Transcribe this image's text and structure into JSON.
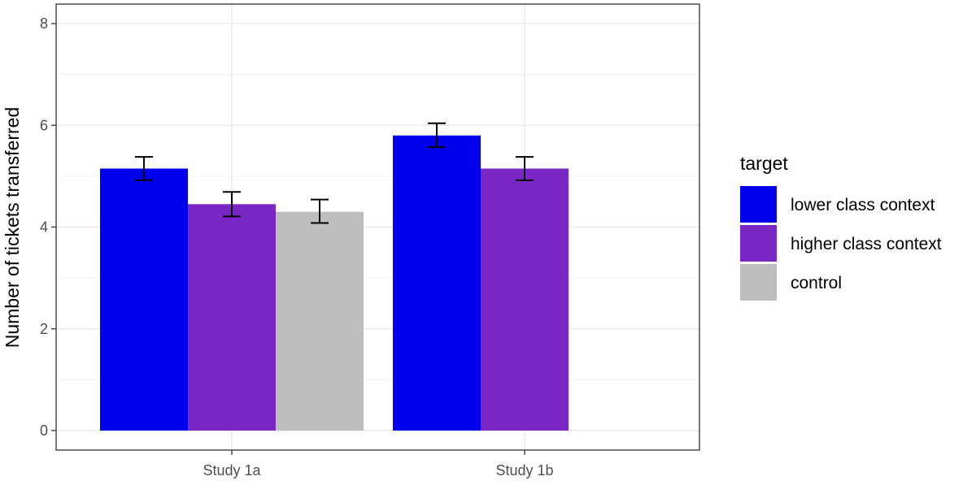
{
  "chart_data": {
    "type": "bar",
    "title": "",
    "xlabel": "",
    "ylabel": "Number of tickets transferred",
    "ylim": [
      0,
      8
    ],
    "yticks": [
      0,
      2,
      4,
      6,
      8
    ],
    "grid": true,
    "legend_position": "right",
    "legend_title": "target",
    "categories": [
      "Study 1a",
      "Study 1b"
    ],
    "series": [
      {
        "name": "lower class context",
        "color": "#0000ee",
        "values": [
          5.15,
          5.8
        ],
        "error": [
          [
            4.92,
            5.38
          ],
          [
            5.57,
            6.04
          ]
        ]
      },
      {
        "name": "higher class context",
        "color": "#7b27c8",
        "values": [
          4.45,
          5.15
        ],
        "error": [
          [
            4.21,
            4.69
          ],
          [
            4.92,
            5.38
          ]
        ]
      },
      {
        "name": "control",
        "color": "#bebebe",
        "values": [
          4.3,
          null
        ],
        "error": [
          [
            4.08,
            4.54
          ],
          null
        ]
      }
    ]
  }
}
